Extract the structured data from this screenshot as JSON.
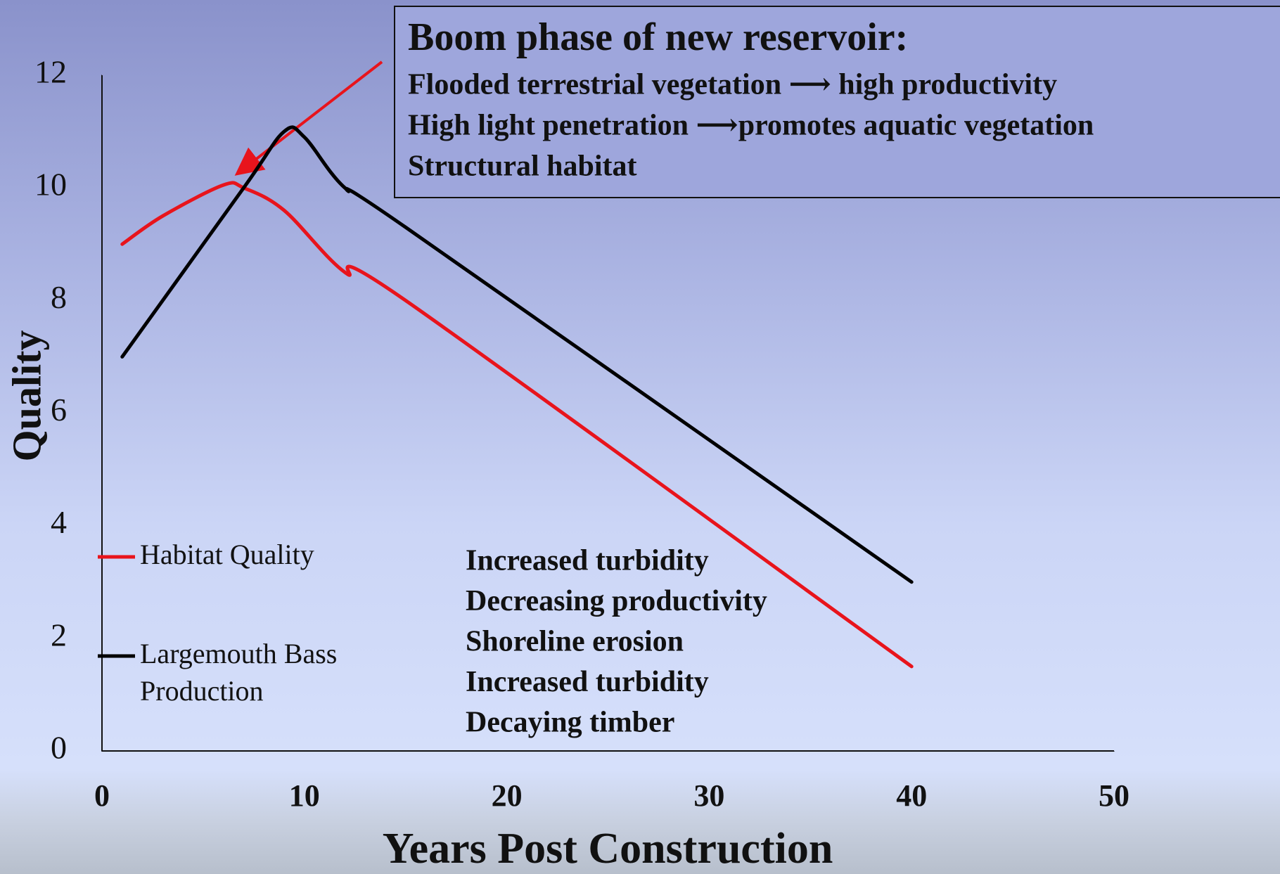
{
  "chart_data": {
    "type": "line",
    "x_label": "Years Post Construction",
    "y_label": "Quality",
    "xlim": [
      0,
      50
    ],
    "xticks": [
      0,
      10,
      20,
      30,
      40,
      50
    ],
    "ylim": [
      0,
      12
    ],
    "yticks": [
      0,
      2,
      4,
      6,
      8,
      10,
      12
    ],
    "series": [
      {
        "name": "Habitat Quality",
        "color": "#e8141c",
        "x": [
          1,
          3,
          6,
          7,
          9,
          12,
          15,
          40
        ],
        "values": [
          9.0,
          9.5,
          10.05,
          10.0,
          9.6,
          8.5,
          8.0,
          1.5
        ]
      },
      {
        "name": "Largemouth Bass Production",
        "color": "#000000",
        "x": [
          1,
          7,
          9,
          10,
          12,
          15,
          40
        ],
        "values": [
          7.0,
          10.0,
          11.0,
          10.9,
          10.0,
          9.3,
          3.0
        ]
      }
    ],
    "box_title": "Boom phase of new reservoir:",
    "box_lines": [
      "Flooded terrestrial vegetation ⟶ high productivity",
      "High light penetration ⟶promotes aquatic vegetation",
      "Structural habitat"
    ],
    "notes": [
      "Increased turbidity",
      "Decreasing productivity",
      "Shoreline erosion",
      "Increased turbidity",
      "Decaying timber"
    ]
  }
}
